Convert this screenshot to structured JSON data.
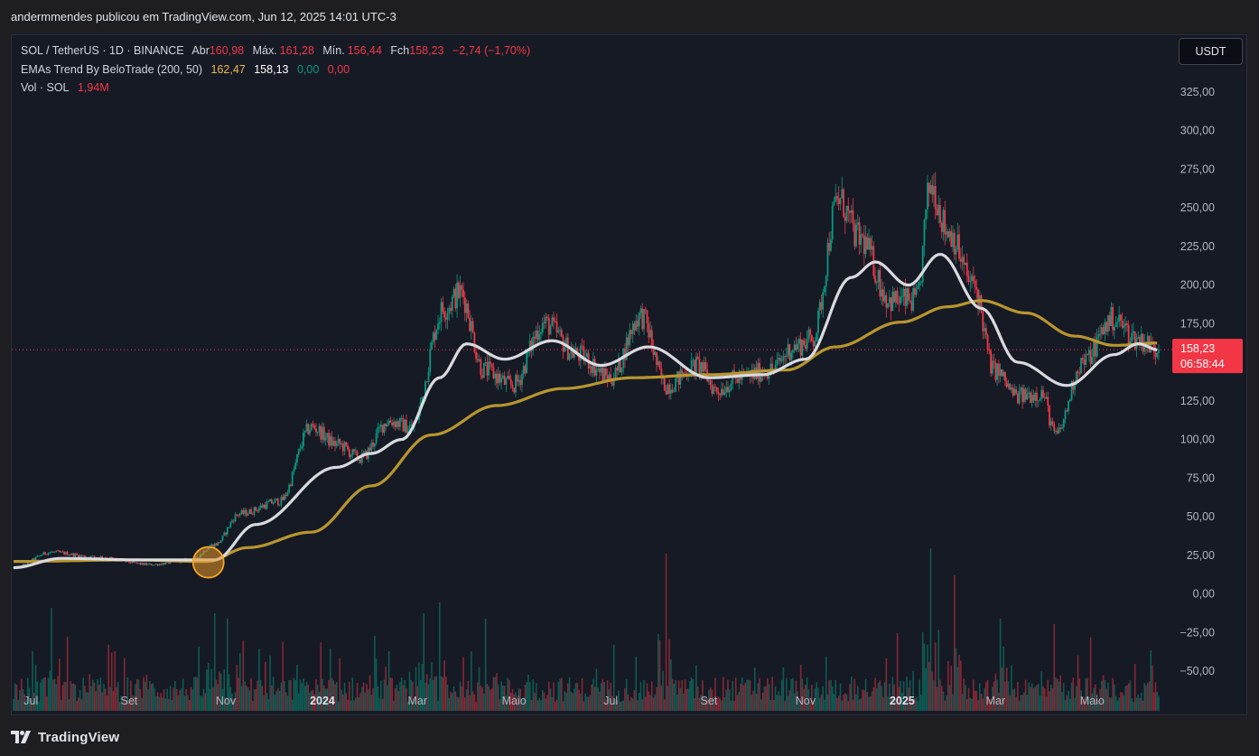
{
  "header": {
    "published": "andermmendes publicou em TradingView.com, Jun 12, 2025 14:01 UTC-3"
  },
  "legend": {
    "symbol": "SOL / TetherUS · 1D · BINANCE",
    "open_label": "Abr",
    "open": "160,98",
    "high_label": "Máx.",
    "high": "161,28",
    "low_label": "Mín.",
    "low": "156,44",
    "close_label": "Fch",
    "close": "158,23",
    "change": "−2,74 (−1,70%)",
    "ema_name": "EMAs Trend By BeloTrade (200, 50)",
    "ema200": "162,47",
    "ema50": "158,13",
    "ema_v1": "0,00",
    "ema_v2": "0,00",
    "vol_name": "Vol · SOL",
    "vol_value": "1,94M"
  },
  "currency_button": "USDT",
  "price_tag": {
    "price": "158,23",
    "countdown": "06:58:44"
  },
  "brand": {
    "name": "TradingView",
    "logo": "tradingview-logo-icon"
  },
  "colors": {
    "up": "#089981",
    "down": "#f23645",
    "ema50": "#d8dadf",
    "ema200": "#b8962e",
    "background": "#161a25"
  },
  "chart_data": {
    "type": "candlestick",
    "title": "",
    "xlabel": "",
    "ylabel": "",
    "ylim": [
      -55,
      342
    ],
    "yticks": [
      "325,00",
      "300,00",
      "275,00",
      "250,00",
      "225,00",
      "200,00",
      "175,00",
      "150,00",
      "125,00",
      "100,00",
      "75,00",
      "50,00",
      "25,00",
      "0,00",
      "−25,00",
      "−50,00"
    ],
    "y_tick_values": [
      325,
      300,
      275,
      250,
      225,
      200,
      175,
      150,
      125,
      100,
      75,
      50,
      25,
      0,
      -25,
      -50
    ],
    "x_tick_labels": [
      "Jul",
      "Set",
      "Nov",
      "2024",
      "Mar",
      "Maio",
      "Jul",
      "Set",
      "Nov",
      "2025",
      "Mar",
      "Maio"
    ],
    "x_tick_dates": [
      "2023-07-01",
      "2023-09-01",
      "2023-11-01",
      "2024-01-01",
      "2024-03-01",
      "2024-05-01",
      "2024-07-01",
      "2024-09-01",
      "2024-11-01",
      "2025-01-01",
      "2025-03-01",
      "2025-05-01"
    ],
    "x_range": [
      "2023-06-20",
      "2025-06-12"
    ],
    "bold_ticks": [
      "2024",
      "2025"
    ],
    "price_keypoints": [
      [
        "2023-06-20",
        17
      ],
      [
        "2023-07-14",
        27
      ],
      [
        "2023-08-10",
        24
      ],
      [
        "2023-09-15",
        19
      ],
      [
        "2023-10-10",
        22
      ],
      [
        "2023-10-25",
        32
      ],
      [
        "2023-11-10",
        52
      ],
      [
        "2023-12-05",
        60
      ],
      [
        "2023-12-25",
        108
      ],
      [
        "2024-01-10",
        97
      ],
      [
        "2024-01-25",
        88
      ],
      [
        "2024-02-12",
        112
      ],
      [
        "2024-02-26",
        108
      ],
      [
        "2024-03-18",
        185
      ],
      [
        "2024-03-28",
        195
      ],
      [
        "2024-04-12",
        145
      ],
      [
        "2024-04-30",
        135
      ],
      [
        "2024-05-20",
        175
      ],
      [
        "2024-06-10",
        155
      ],
      [
        "2024-07-01",
        140
      ],
      [
        "2024-07-20",
        180
      ],
      [
        "2024-08-05",
        135
      ],
      [
        "2024-08-25",
        148
      ],
      [
        "2024-09-06",
        132
      ],
      [
        "2024-09-20",
        140
      ],
      [
        "2024-10-10",
        145
      ],
      [
        "2024-10-25",
        160
      ],
      [
        "2024-11-05",
        165
      ],
      [
        "2024-11-22",
        255
      ],
      [
        "2024-12-05",
        230
      ],
      [
        "2024-12-25",
        190
      ],
      [
        "2025-01-10",
        190
      ],
      [
        "2025-01-19",
        265
      ],
      [
        "2025-01-30",
        235
      ],
      [
        "2025-02-15",
        200
      ],
      [
        "2025-02-28",
        145
      ],
      [
        "2025-03-15",
        128
      ],
      [
        "2025-03-30",
        130
      ],
      [
        "2025-04-08",
        103
      ],
      [
        "2025-04-25",
        150
      ],
      [
        "2025-05-14",
        178
      ],
      [
        "2025-05-30",
        165
      ],
      [
        "2025-06-12",
        158
      ]
    ],
    "series": [
      {
        "name": "",
        "type": "ema",
        "color": "#b8962e",
        "points": [
          [
            "2023-06-20",
            21
          ],
          [
            "2023-09-01",
            22
          ],
          [
            "2023-10-20",
            21
          ],
          [
            "2023-11-15",
            30
          ],
          [
            "2023-12-25",
            40
          ],
          [
            "2024-02-01",
            70
          ],
          [
            "2024-03-10",
            103
          ],
          [
            "2024-04-20",
            122
          ],
          [
            "2024-06-01",
            133
          ],
          [
            "2024-07-15",
            140
          ],
          [
            "2024-09-01",
            142
          ],
          [
            "2024-10-20",
            145
          ],
          [
            "2024-11-20",
            160
          ],
          [
            "2024-12-31",
            176
          ],
          [
            "2025-01-30",
            186
          ],
          [
            "2025-02-20",
            190
          ],
          [
            "2025-03-20",
            182
          ],
          [
            "2025-04-20",
            167
          ],
          [
            "2025-05-15",
            161
          ],
          [
            "2025-06-12",
            162.5
          ]
        ]
      },
      {
        "name": "",
        "type": "ema",
        "color": "#d8dadf",
        "points": [
          [
            "2023-06-20",
            17
          ],
          [
            "2023-07-20",
            23
          ],
          [
            "2023-09-10",
            22
          ],
          [
            "2023-10-25",
            22
          ],
          [
            "2023-11-20",
            45
          ],
          [
            "2024-01-10",
            82
          ],
          [
            "2024-02-01",
            91
          ],
          [
            "2024-02-20",
            100
          ],
          [
            "2024-03-15",
            140
          ],
          [
            "2024-04-01",
            162
          ],
          [
            "2024-04-25",
            152
          ],
          [
            "2024-05-25",
            164
          ],
          [
            "2024-06-25",
            148
          ],
          [
            "2024-07-25",
            160
          ],
          [
            "2024-09-01",
            140
          ],
          [
            "2024-10-05",
            142
          ],
          [
            "2024-11-01",
            152
          ],
          [
            "2024-11-30",
            205
          ],
          [
            "2024-12-15",
            215
          ],
          [
            "2025-01-05",
            200
          ],
          [
            "2025-01-25",
            220
          ],
          [
            "2025-02-20",
            185
          ],
          [
            "2025-03-15",
            150
          ],
          [
            "2025-04-15",
            135
          ],
          [
            "2025-05-15",
            155
          ],
          [
            "2025-05-30",
            162
          ],
          [
            "2025-06-12",
            158
          ]
        ]
      }
    ],
    "volume_spikes": [
      [
        "2023-07-14",
        0.95
      ],
      [
        "2023-10-25",
        0.9
      ],
      [
        "2023-11-02",
        0.85
      ],
      [
        "2024-03-05",
        0.9
      ],
      [
        "2024-03-15",
        1.0
      ],
      [
        "2024-04-13",
        0.85
      ],
      [
        "2024-08-05",
        1.45
      ],
      [
        "2025-01-19",
        1.5
      ],
      [
        "2025-02-03",
        1.25
      ],
      [
        "2025-03-04",
        0.85
      ],
      [
        "2025-04-07",
        0.8
      ]
    ],
    "last_price": 158.23,
    "grid": false,
    "legend": "top-left"
  }
}
